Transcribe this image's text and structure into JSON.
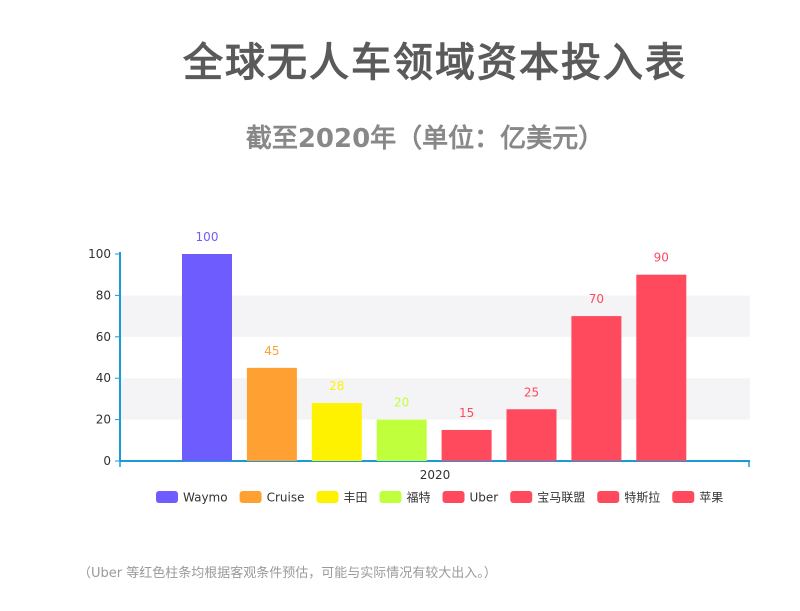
{
  "title": "全球无人车领域资本投入表",
  "subtitle": "截至2020年（单位：亿美元）",
  "footnote": "（Uber 等红色柱条均根据客观条件预估，可能与实际情况有较大出入。）",
  "chart_data": {
    "type": "bar",
    "categories": [
      "2020"
    ],
    "series": [
      {
        "name": "Waymo",
        "values": [
          100
        ],
        "color": "#6f5cff"
      },
      {
        "name": "Cruise",
        "values": [
          45
        ],
        "color": "#ffa132"
      },
      {
        "name": "丰田",
        "values": [
          28
        ],
        "color": "#fff200"
      },
      {
        "name": "福特",
        "values": [
          20
        ],
        "color": "#c0ff3c"
      },
      {
        "name": "Uber",
        "values": [
          15
        ],
        "color": "#ff4a5e"
      },
      {
        "name": "宝马联盟",
        "values": [
          25
        ],
        "color": "#ff4a5e"
      },
      {
        "name": "特斯拉",
        "values": [
          70
        ],
        "color": "#ff4a5e"
      },
      {
        "name": "苹果",
        "values": [
          90
        ],
        "color": "#ff4a5e"
      }
    ],
    "ylim": [
      0,
      100
    ],
    "yticks": [
      0,
      20,
      40,
      60,
      80,
      100
    ],
    "axis_color": "#1a9ad6",
    "grid": "alternating bands",
    "legend_position": "bottom"
  }
}
